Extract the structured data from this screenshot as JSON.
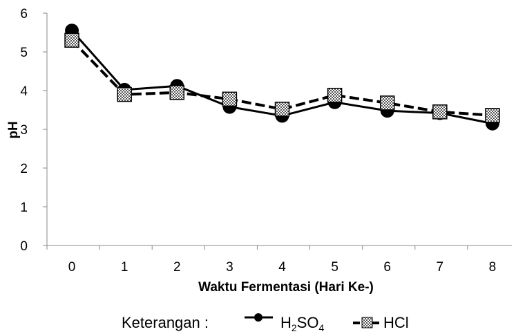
{
  "chart_data": {
    "type": "line",
    "xlabel": "Waktu Fermentasi (Hari Ke-)",
    "ylabel": "pH",
    "categories": [
      "0",
      "1",
      "2",
      "3",
      "4",
      "5",
      "6",
      "7",
      "8"
    ],
    "ylim": [
      0,
      6
    ],
    "yticks": [
      0,
      1,
      2,
      3,
      4,
      5,
      6
    ],
    "grid": false,
    "legend_placement": "bottom",
    "legend_prefix": "Keterangan :",
    "series": [
      {
        "name": "H2SO4",
        "label_main": "H",
        "label_sub1": "2",
        "label_mid": "SO",
        "label_sub2": "4",
        "line_style": "solid",
        "marker": "circle",
        "color": "#000000",
        "values": [
          5.55,
          4.02,
          4.12,
          3.58,
          3.35,
          3.7,
          3.48,
          3.42,
          3.15
        ]
      },
      {
        "name": "HCl",
        "line_style": "dashed",
        "marker": "square-checkered",
        "color": "#000000",
        "values": [
          5.3,
          3.9,
          3.95,
          3.78,
          3.52,
          3.88,
          3.68,
          3.45,
          3.36
        ]
      }
    ]
  }
}
